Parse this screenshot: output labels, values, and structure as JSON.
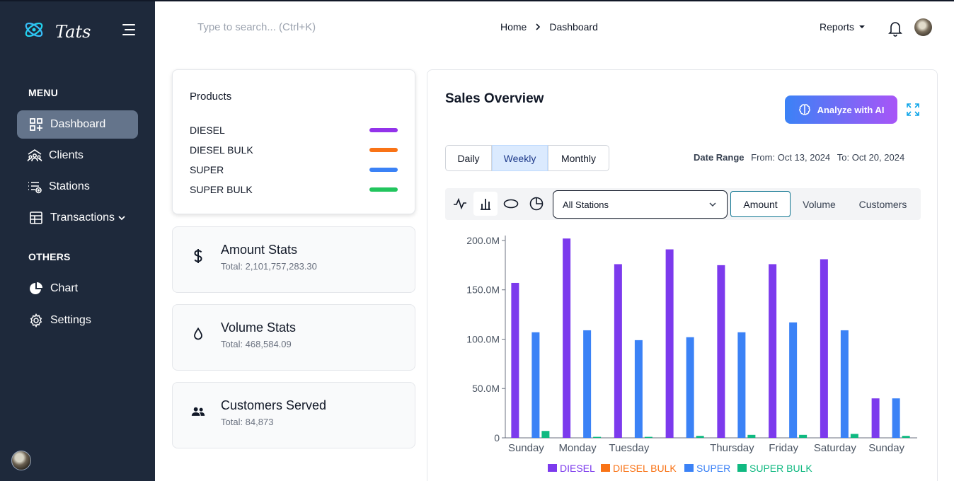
{
  "app": {
    "name": "Tats"
  },
  "sidebar": {
    "menu_label": "MENU",
    "others_label": "OTHERS",
    "items": [
      {
        "label": "Dashboard",
        "icon": "dashboard-icon",
        "active": true
      },
      {
        "label": "Clients",
        "icon": "clients-icon"
      },
      {
        "label": "Stations",
        "icon": "stations-icon"
      },
      {
        "label": "Transactions",
        "icon": "table-icon"
      }
    ],
    "others": [
      {
        "label": "Chart",
        "icon": "pie-chart-icon"
      },
      {
        "label": "Settings",
        "icon": "gear-icon"
      }
    ]
  },
  "header": {
    "search_placeholder": "Type to search... (Ctrl+K)",
    "breadcrumb": [
      "Home",
      "Dashboard"
    ],
    "reports_label": "Reports"
  },
  "products": {
    "title": "Products",
    "items": [
      {
        "name": "DIESEL",
        "color": "#9333ea"
      },
      {
        "name": "DIESEL BULK",
        "color": "#f97316"
      },
      {
        "name": "SUPER",
        "color": "#3b82f6"
      },
      {
        "name": "SUPER BULK",
        "color": "#22c55e"
      }
    ]
  },
  "stats": [
    {
      "title": "Amount Stats",
      "total": "Total: 2,101,757,283.30",
      "icon": "dollar-icon"
    },
    {
      "title": "Volume Stats",
      "total": "Total: 468,584.09",
      "icon": "droplet-icon"
    },
    {
      "title": "Customers Served",
      "total": "Total: 84,873",
      "icon": "users-icon"
    }
  ],
  "sales": {
    "title": "Sales Overview",
    "ai_button": "Analyze with AI",
    "periods": [
      "Daily",
      "Weekly",
      "Monthly"
    ],
    "active_period": "Weekly",
    "date_range_label": "Date Range",
    "date_from": "From: Oct 13, 2024",
    "date_to": "To: Oct 20, 2024",
    "station_select": "All Stations",
    "metrics": [
      "Amount",
      "Volume",
      "Customers"
    ],
    "active_metric": "Amount"
  },
  "chart_data": {
    "type": "bar",
    "categories": [
      "Sunday",
      "Monday",
      "Tuesday",
      "",
      "Thursday",
      "Friday",
      "Saturday",
      "Sunday"
    ],
    "series": [
      {
        "name": "DIESEL",
        "color": "#7c3aed",
        "values": [
          157,
          202,
          176,
          191,
          175,
          176,
          181,
          40
        ]
      },
      {
        "name": "DIESEL BULK",
        "color": "#f97316",
        "values": [
          0,
          0,
          0,
          0,
          0,
          0,
          0,
          0
        ]
      },
      {
        "name": "SUPER",
        "color": "#3b82f6",
        "values": [
          107,
          109,
          99,
          102,
          107,
          117,
          109,
          40
        ]
      },
      {
        "name": "SUPER BULK",
        "color": "#10b981",
        "values": [
          7,
          1,
          1,
          2,
          3,
          3,
          4,
          2
        ]
      }
    ],
    "yticks": [
      "0",
      "50.0M",
      "100.0M",
      "150.0M",
      "200.0M"
    ],
    "ytick_values": [
      0,
      50,
      100,
      150,
      200
    ],
    "ylim": [
      0,
      205
    ],
    "unit": "millions",
    "legend_position": "bottom",
    "grid": false
  }
}
